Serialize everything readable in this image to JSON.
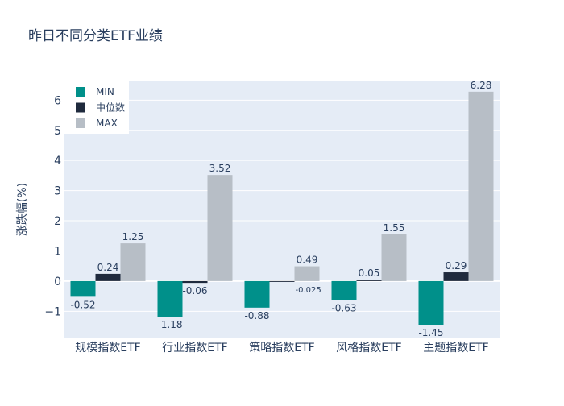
{
  "chart_data": {
    "type": "bar",
    "title": "昨日不同分类ETF业绩",
    "ylabel": "涨跌幅(%)",
    "xlabel": "",
    "categories": [
      "规模指数ETF",
      "行业指数ETF",
      "策略指数ETF",
      "风格指数ETF",
      "主题指数ETF"
    ],
    "series": [
      {
        "name": "MIN",
        "color": "#00908a",
        "values": [
          -0.52,
          -1.18,
          -0.88,
          -0.63,
          -1.45
        ],
        "labels": [
          "-0.52",
          "-1.18",
          "-0.88",
          "-0.63",
          "-1.45"
        ]
      },
      {
        "name": "中位数",
        "color": "#1f2a3d",
        "values": [
          0.24,
          -0.06,
          -0.025,
          0.05,
          0.29
        ],
        "labels": [
          "0.24",
          "-0.06",
          "-0.025",
          "0.05",
          "0.29"
        ]
      },
      {
        "name": "MAX",
        "color": "#b7bec6",
        "values": [
          1.25,
          3.52,
          0.49,
          1.55,
          6.28
        ],
        "labels": [
          "1.25",
          "3.52",
          "0.49",
          "1.55",
          "6.28"
        ]
      }
    ],
    "ylim": [
      -1.9,
      6.65
    ],
    "yticks": [
      -1,
      0,
      1,
      2,
      3,
      4,
      5,
      6
    ],
    "ytick_labels": [
      "−1",
      "0",
      "1",
      "2",
      "3",
      "4",
      "5",
      "6"
    ],
    "grid": true,
    "legend_position": "top-left",
    "colors": {
      "plot_bg": "#e5ecf6",
      "grid": "#ffffff",
      "text": "#2a3f5f"
    }
  }
}
